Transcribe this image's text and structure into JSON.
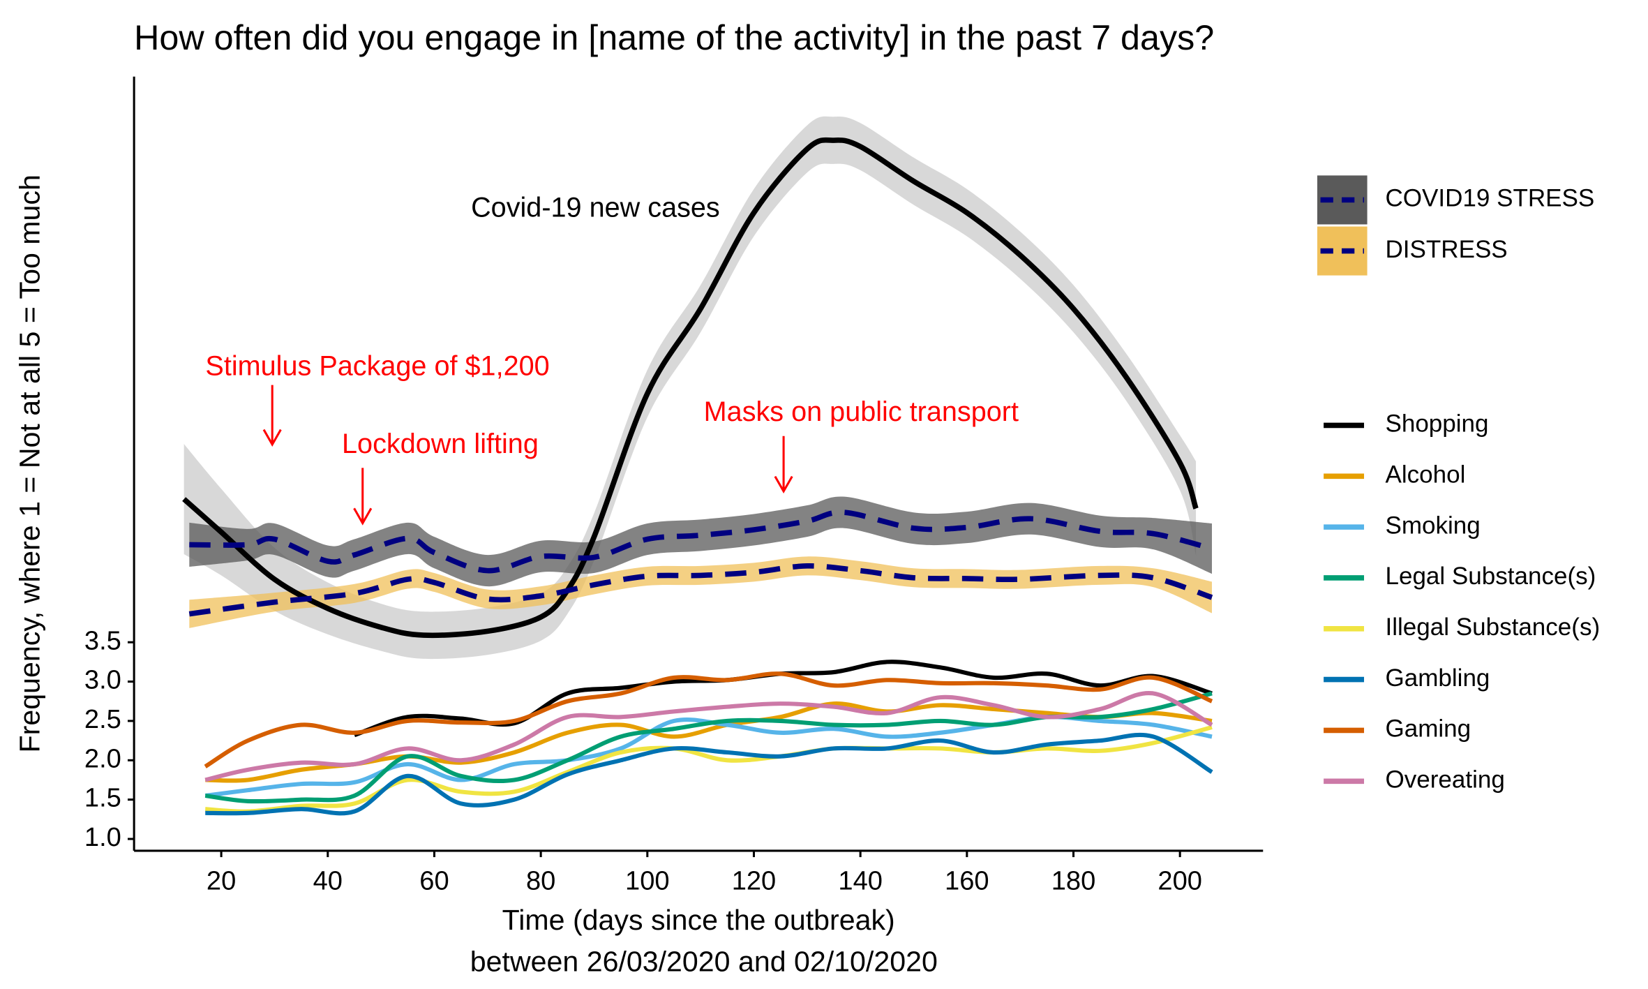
{
  "chart_data": {
    "type": "line",
    "title": "How often did you engage in [name of the activity] in the past 7 days?",
    "x_label": [
      "Time (days since the outbreak)",
      "between 26/03/2020 and 02/10/2020"
    ],
    "y_label": "Frequency,   where 1 = Not at all  5 = Too much",
    "xlim": [
      3.63,
      215.6
    ],
    "ylim": [
      0.85,
      10.69
    ],
    "xticks": [
      20,
      40,
      60,
      80,
      100,
      120,
      140,
      160,
      180,
      200
    ],
    "yticks": [
      {
        "value": 1,
        "label": "1.0"
      },
      1.5,
      {
        "value": 2,
        "label": "2.0"
      },
      2.5,
      {
        "value": 3,
        "label": "3.0"
      },
      3.5
    ],
    "annotations": [
      "Covid-19 new cases",
      "Stimulus Package of $1,200",
      "Lockdown lifting",
      "Masks on public transport"
    ],
    "annotation_color": "#ff0000",
    "bands": [
      {
        "color": "#000000",
        "band_color": "#c8c8c8",
        "x": [
          13,
          20,
          30,
          40,
          50,
          58,
          70,
          80,
          85,
          90,
          100,
          110,
          120,
          130,
          135,
          140,
          150,
          160,
          170,
          180,
          190,
          200,
          203
        ],
        "values": [
          5.32,
          4.9,
          4.3,
          3.93,
          3.69,
          3.59,
          3.64,
          3.82,
          4.16,
          4.84,
          6.66,
          7.74,
          8.96,
          9.77,
          9.88,
          9.8,
          9.36,
          8.96,
          8.42,
          7.74,
          6.86,
          5.78,
          5.2
        ],
        "ci": [
          0.7,
          0.55,
          0.4,
          0.33,
          0.3,
          0.3,
          0.3,
          0.3,
          0.3,
          0.3,
          0.3,
          0.3,
          0.3,
          0.3,
          0.3,
          0.3,
          0.3,
          0.3,
          0.3,
          0.3,
          0.3,
          0.35,
          0.6
        ]
      },
      {
        "name": "COVID19 STRESS",
        "color": "#000080",
        "band_color": "#5a5a5a",
        "dashed": true,
        "x": [
          14,
          25,
          30,
          40,
          45,
          55,
          60,
          70,
          80,
          90,
          100,
          110,
          120,
          130,
          137,
          150,
          160,
          172,
          185,
          195,
          206
        ],
        "values": [
          4.74,
          4.74,
          4.81,
          4.53,
          4.61,
          4.82,
          4.64,
          4.41,
          4.59,
          4.58,
          4.81,
          4.86,
          4.93,
          5.04,
          5.15,
          4.95,
          4.96,
          5.07,
          4.91,
          4.88,
          4.69
        ],
        "ci": [
          0.28,
          0.2,
          0.2,
          0.2,
          0.2,
          0.2,
          0.2,
          0.2,
          0.2,
          0.2,
          0.2,
          0.2,
          0.2,
          0.2,
          0.2,
          0.2,
          0.2,
          0.2,
          0.2,
          0.2,
          0.32
        ]
      },
      {
        "name": "DISTRESS",
        "color": "#000080",
        "band_color": "#f0c05a",
        "dashed": true,
        "x": [
          14,
          30,
          45,
          55,
          60,
          70,
          80,
          90,
          100,
          110,
          120,
          130,
          140,
          150,
          160,
          170,
          185,
          195,
          206
        ],
        "values": [
          3.86,
          4.01,
          4.12,
          4.3,
          4.26,
          4.05,
          4.09,
          4.23,
          4.34,
          4.35,
          4.39,
          4.47,
          4.41,
          4.32,
          4.31,
          4.3,
          4.35,
          4.32,
          4.07
        ],
        "ci": [
          0.18,
          0.12,
          0.12,
          0.12,
          0.12,
          0.12,
          0.12,
          0.12,
          0.12,
          0.12,
          0.12,
          0.12,
          0.12,
          0.12,
          0.12,
          0.12,
          0.12,
          0.12,
          0.2
        ]
      }
    ],
    "x": [
      17,
      25,
      35,
      45,
      55,
      65,
      75,
      85,
      95,
      105,
      115,
      125,
      135,
      145,
      155,
      165,
      175,
      185,
      195,
      206
    ],
    "series": [
      {
        "name": "Shopping",
        "color": "#000000",
        "values": [
          null,
          null,
          null,
          2.32,
          2.55,
          2.53,
          2.47,
          2.85,
          2.92,
          3.0,
          3.02,
          3.1,
          3.12,
          3.25,
          3.18,
          3.05,
          3.1,
          2.95,
          3.07,
          2.85
        ]
      },
      {
        "name": "Alcohol",
        "color": "#E69F00",
        "values": [
          1.75,
          1.75,
          1.88,
          1.95,
          2.05,
          1.97,
          2.1,
          2.35,
          2.45,
          2.3,
          2.45,
          2.55,
          2.72,
          2.62,
          2.7,
          2.65,
          2.6,
          2.55,
          2.6,
          2.5
        ]
      },
      {
        "name": "Smoking",
        "color": "#56B4E9",
        "values": [
          1.55,
          1.62,
          1.7,
          1.72,
          1.95,
          1.75,
          1.95,
          2.0,
          2.15,
          2.5,
          2.45,
          2.35,
          2.4,
          2.3,
          2.35,
          2.45,
          2.55,
          2.5,
          2.45,
          2.3
        ]
      },
      {
        "name": "Legal Substance(s)",
        "color": "#009E73",
        "values": [
          1.55,
          1.48,
          1.5,
          1.55,
          2.05,
          1.8,
          1.75,
          2.0,
          2.3,
          2.4,
          2.5,
          2.5,
          2.45,
          2.45,
          2.5,
          2.45,
          2.55,
          2.55,
          2.65,
          2.85
        ]
      },
      {
        "name": "Illegal Substance(s)",
        "color": "#F0E442",
        "values": [
          1.38,
          1.35,
          1.42,
          1.45,
          1.75,
          1.6,
          1.6,
          1.85,
          2.1,
          2.15,
          2.0,
          2.05,
          2.15,
          2.15,
          2.15,
          2.1,
          2.15,
          2.12,
          2.22,
          2.42
        ]
      },
      {
        "name": "Gambling",
        "color": "#0072B2",
        "values": [
          1.33,
          1.33,
          1.38,
          1.35,
          1.8,
          1.45,
          1.5,
          1.82,
          2.0,
          2.15,
          2.1,
          2.05,
          2.15,
          2.15,
          2.25,
          2.1,
          2.2,
          2.25,
          2.3,
          1.85
        ]
      },
      {
        "name": "Gaming",
        "color": "#D55E00",
        "values": [
          1.92,
          2.25,
          2.45,
          2.35,
          2.5,
          2.48,
          2.5,
          2.75,
          2.85,
          3.05,
          3.02,
          3.1,
          2.95,
          3.02,
          2.98,
          2.98,
          2.95,
          2.9,
          3.05,
          2.75
        ]
      },
      {
        "name": "Overeating",
        "color": "#CC79A7",
        "values": [
          1.75,
          1.88,
          1.97,
          1.95,
          2.15,
          2.0,
          2.2,
          2.55,
          2.55,
          2.62,
          2.68,
          2.72,
          2.68,
          2.6,
          2.8,
          2.7,
          2.55,
          2.65,
          2.85,
          2.45
        ]
      }
    ]
  }
}
